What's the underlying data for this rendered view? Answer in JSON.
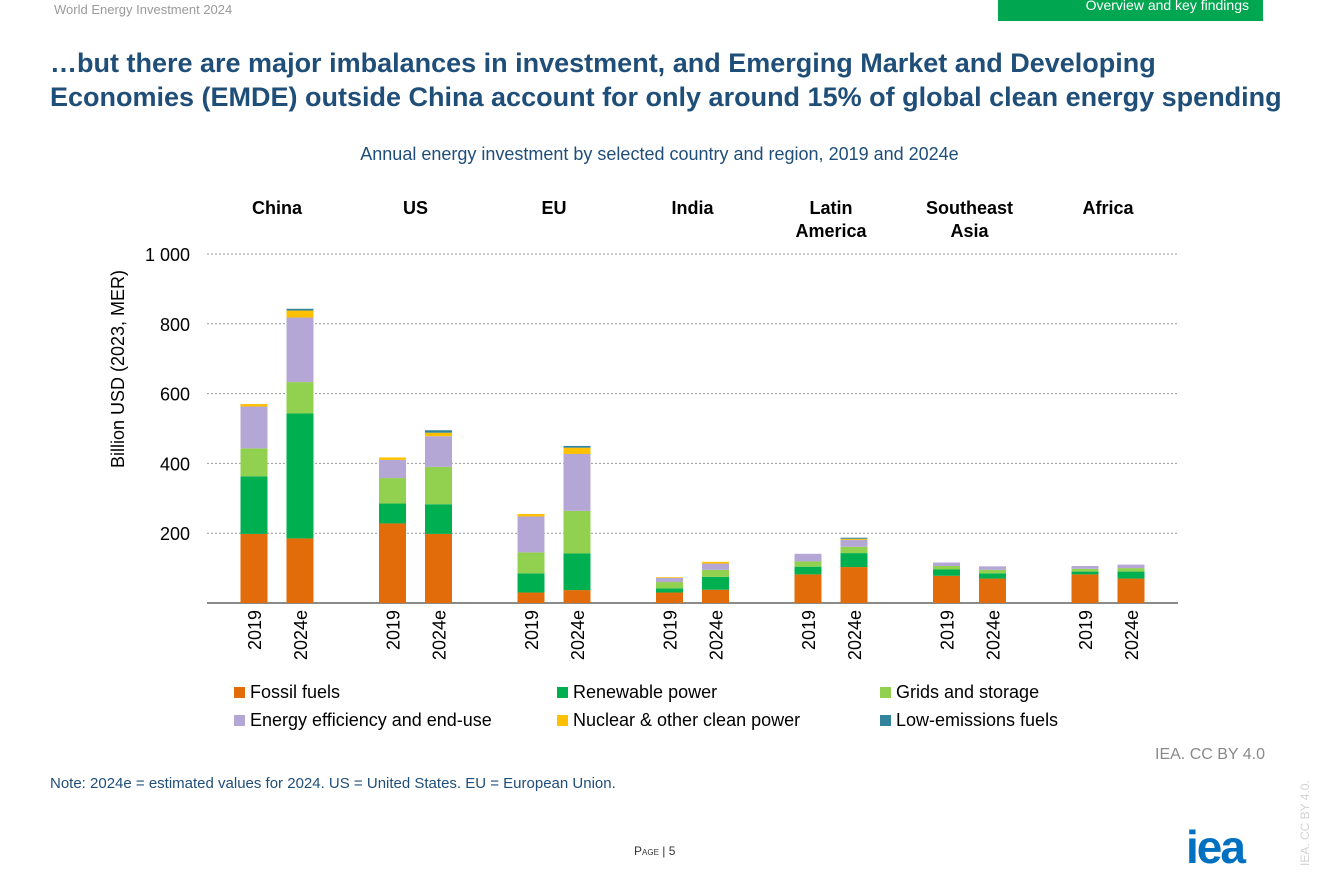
{
  "header": {
    "doc_title": "World Energy Investment 2024",
    "section_tab": "Overview and key findings"
  },
  "headline": "…but there are major imbalances in investment, and Emerging Market and Developing Economies (EMDE) outside China account for only around 15% of global clean energy spending",
  "chart_data": {
    "type": "bar",
    "stacked": true,
    "title": "Annual energy investment by selected country and region, 2019 and 2024e",
    "ylabel": "Billion USD (2023, MER)",
    "xlabel": "",
    "ylim": [
      0,
      1000
    ],
    "yticks": [
      200,
      400,
      600,
      800,
      1000
    ],
    "ytick_labels": [
      "200",
      "400",
      "600",
      "800",
      "1 000"
    ],
    "grid": true,
    "legend_position": "bottom",
    "groups": [
      "China",
      "US",
      "EU",
      "India",
      "Latin America",
      "Southeast Asia",
      "Africa"
    ],
    "categories": [
      "2019",
      "2024e",
      "2019",
      "2024e",
      "2019",
      "2024e",
      "2019",
      "2024e",
      "2019",
      "2024e",
      "2019",
      "2024e",
      "2019",
      "2024e"
    ],
    "series": [
      {
        "name": "Fossil fuels",
        "color": "#e36c0a",
        "values": [
          198,
          185,
          228,
          198,
          30,
          37,
          30,
          38,
          82,
          103,
          78,
          70,
          82,
          70
        ]
      },
      {
        "name": "Renewable power",
        "color": "#00b050",
        "values": [
          165,
          358,
          57,
          85,
          55,
          105,
          12,
          37,
          22,
          40,
          18,
          15,
          8,
          20
        ]
      },
      {
        "name": "Grids and storage",
        "color": "#92d050",
        "values": [
          80,
          90,
          73,
          107,
          60,
          122,
          18,
          20,
          15,
          18,
          10,
          10,
          8,
          10
        ]
      },
      {
        "name": "Energy efficiency and end-use",
        "color": "#b4a7d6",
        "values": [
          120,
          185,
          52,
          88,
          103,
          163,
          12,
          18,
          22,
          20,
          10,
          10,
          8,
          10
        ]
      },
      {
        "name": "Nuclear & other clean power",
        "color": "#ffc000",
        "values": [
          7,
          20,
          7,
          10,
          7,
          18,
          2,
          5,
          0,
          3,
          0,
          0,
          0,
          0
        ]
      },
      {
        "name": "Low-emissions fuels",
        "color": "#31849b",
        "values": [
          0,
          5,
          0,
          7,
          0,
          5,
          0,
          0,
          0,
          3,
          0,
          0,
          0,
          0
        ]
      }
    ]
  },
  "credit": "IEA. CC BY 4.0",
  "note": "Note: 2024e = estimated values for 2024. US = United States. EU = European Union.",
  "footer": {
    "page_label": "Page",
    "page_number": "5",
    "logo_text": "iea",
    "vertical_credit": "IEA. CC BY 4.0."
  }
}
